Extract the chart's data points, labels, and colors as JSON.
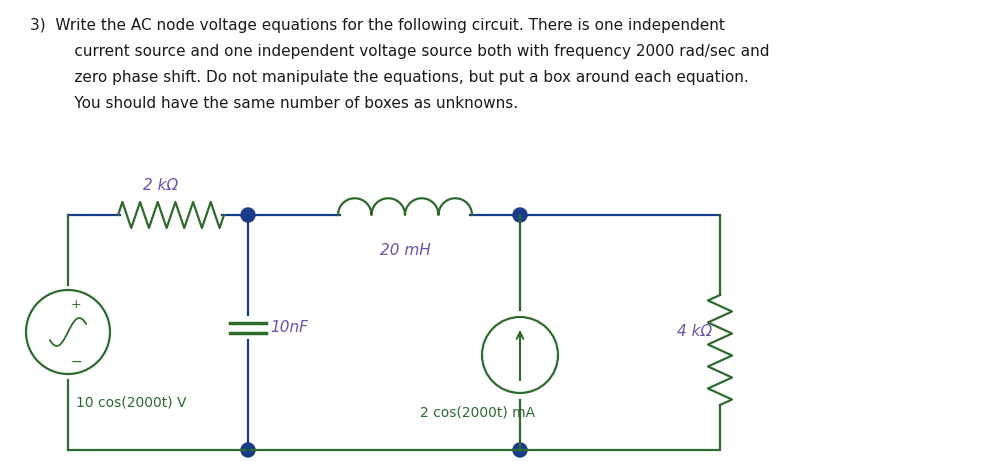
{
  "background_color": "#ffffff",
  "text_color": "#1a1a1a",
  "circuit_color": "#2d6b2d",
  "node_color": "#1a3a8a",
  "label_color": "#6655aa",
  "label_2kohm": "2 kΩ",
  "label_20mH": "20 mH",
  "label_4kohm": "4 kΩ",
  "label_10nF": "10nF",
  "label_vsource": "10 cos(2000t) V",
  "label_isource": "2 cos(2000t) mA",
  "line1": "3)  Write the AC node voltage equations for the following circuit. There is one independent",
  "line2": "     current source and one independent voltage source both with frequency 2000 rad/sec and",
  "line3": "     zero phase shift. Do not manipulate the equations, but put a box around each equation.",
  "line4": "     You should have the same number of boxes as unknowns."
}
